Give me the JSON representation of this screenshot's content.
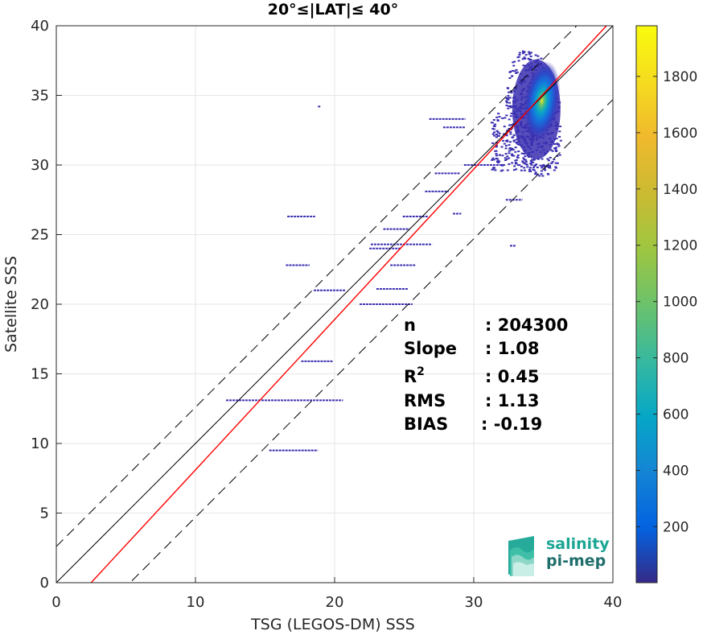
{
  "chart_data": {
    "type": "heatmap",
    "title": "20°≤|LAT|≤ 40°",
    "xlabel": "TSG (LEGOS-DM) SSS",
    "ylabel": "Satellite SSS",
    "xlim": [
      0,
      40
    ],
    "ylim": [
      0,
      40
    ],
    "xticks": [
      "0",
      "10",
      "20",
      "30",
      "40"
    ],
    "yticks": [
      "0",
      "5",
      "10",
      "15",
      "20",
      "25",
      "30",
      "35",
      "40"
    ],
    "grid": true,
    "colorbar": {
      "range": [
        1,
        1980
      ],
      "ticks": [
        "200",
        "400",
        "600",
        "800",
        "1000",
        "1200",
        "1400",
        "1600",
        "1800"
      ],
      "colormap": "parula"
    },
    "lines": [
      {
        "kind": "one-to-one",
        "color": "#000000",
        "style": "solid",
        "slope": 1,
        "intercept": 0
      },
      {
        "kind": "offset-upper",
        "color": "#000000",
        "style": "dashed",
        "slope": 1,
        "intercept": 2.6
      },
      {
        "kind": "offset-lower",
        "color": "#000000",
        "style": "dashed",
        "slope": 1,
        "intercept": -5.3
      },
      {
        "kind": "regression",
        "color": "#ff0000",
        "style": "solid",
        "slope": 1.08,
        "intercept": -2.7
      }
    ],
    "density_core": {
      "x": 34.9,
      "y": 34.6,
      "peak": 1980
    },
    "scatter_segments": [
      {
        "y": 13.1,
        "x0": 12.2,
        "x1": 20.6
      },
      {
        "y": 9.5,
        "x0": 15.3,
        "x1": 18.8
      },
      {
        "y": 15.9,
        "x0": 17.6,
        "x1": 19.9
      },
      {
        "y": 21.0,
        "x0": 18.5,
        "x1": 20.8
      },
      {
        "y": 22.8,
        "x0": 16.5,
        "x1": 18.2
      },
      {
        "y": 22.8,
        "x0": 24.0,
        "x1": 25.8
      },
      {
        "y": 24.3,
        "x0": 22.6,
        "x1": 27.0
      },
      {
        "y": 24.0,
        "x0": 22.5,
        "x1": 24.8
      },
      {
        "y": 26.3,
        "x0": 16.6,
        "x1": 18.6
      },
      {
        "y": 26.3,
        "x0": 24.9,
        "x1": 26.7
      },
      {
        "y": 28.1,
        "x0": 26.5,
        "x1": 28.2
      },
      {
        "y": 29.4,
        "x0": 27.2,
        "x1": 29.0
      },
      {
        "y": 33.3,
        "x0": 26.8,
        "x1": 29.4
      },
      {
        "y": 32.7,
        "x0": 27.8,
        "x1": 29.4
      },
      {
        "y": 30.0,
        "x0": 29.3,
        "x1": 32.3
      },
      {
        "y": 27.5,
        "x0": 32.3,
        "x1": 33.5
      },
      {
        "y": 26.5,
        "x0": 28.5,
        "x1": 29.1
      },
      {
        "y": 20.0,
        "x0": 21.8,
        "x1": 25.6
      },
      {
        "y": 21.1,
        "x0": 23.0,
        "x1": 25.3
      },
      {
        "y": 34.2,
        "x0": 18.8,
        "x1": 19.0
      },
      {
        "y": 25.4,
        "x0": 23.5,
        "x1": 25.4
      },
      {
        "y": 24.2,
        "x0": 32.6,
        "x1": 33.0
      }
    ],
    "stats": [
      {
        "label": "n",
        "value": ": 204300"
      },
      {
        "label": "Slope",
        "value": ": 1.08"
      },
      {
        "label": "R",
        "sup": "2",
        "value": ": 0.45"
      },
      {
        "label": "RMS",
        "value": ": 1.13"
      },
      {
        "label": "BIAS",
        "value": ": -0.19"
      }
    ]
  },
  "logo": {
    "line1": "salinity",
    "line2": "pi-mep",
    "color1": "#1aa593",
    "color2": "#1f6e6c"
  },
  "colors": {
    "regression": "#ff0000",
    "reference": "#000000",
    "sparse": "#3a2fb0",
    "grid": "#e6e6e6"
  }
}
